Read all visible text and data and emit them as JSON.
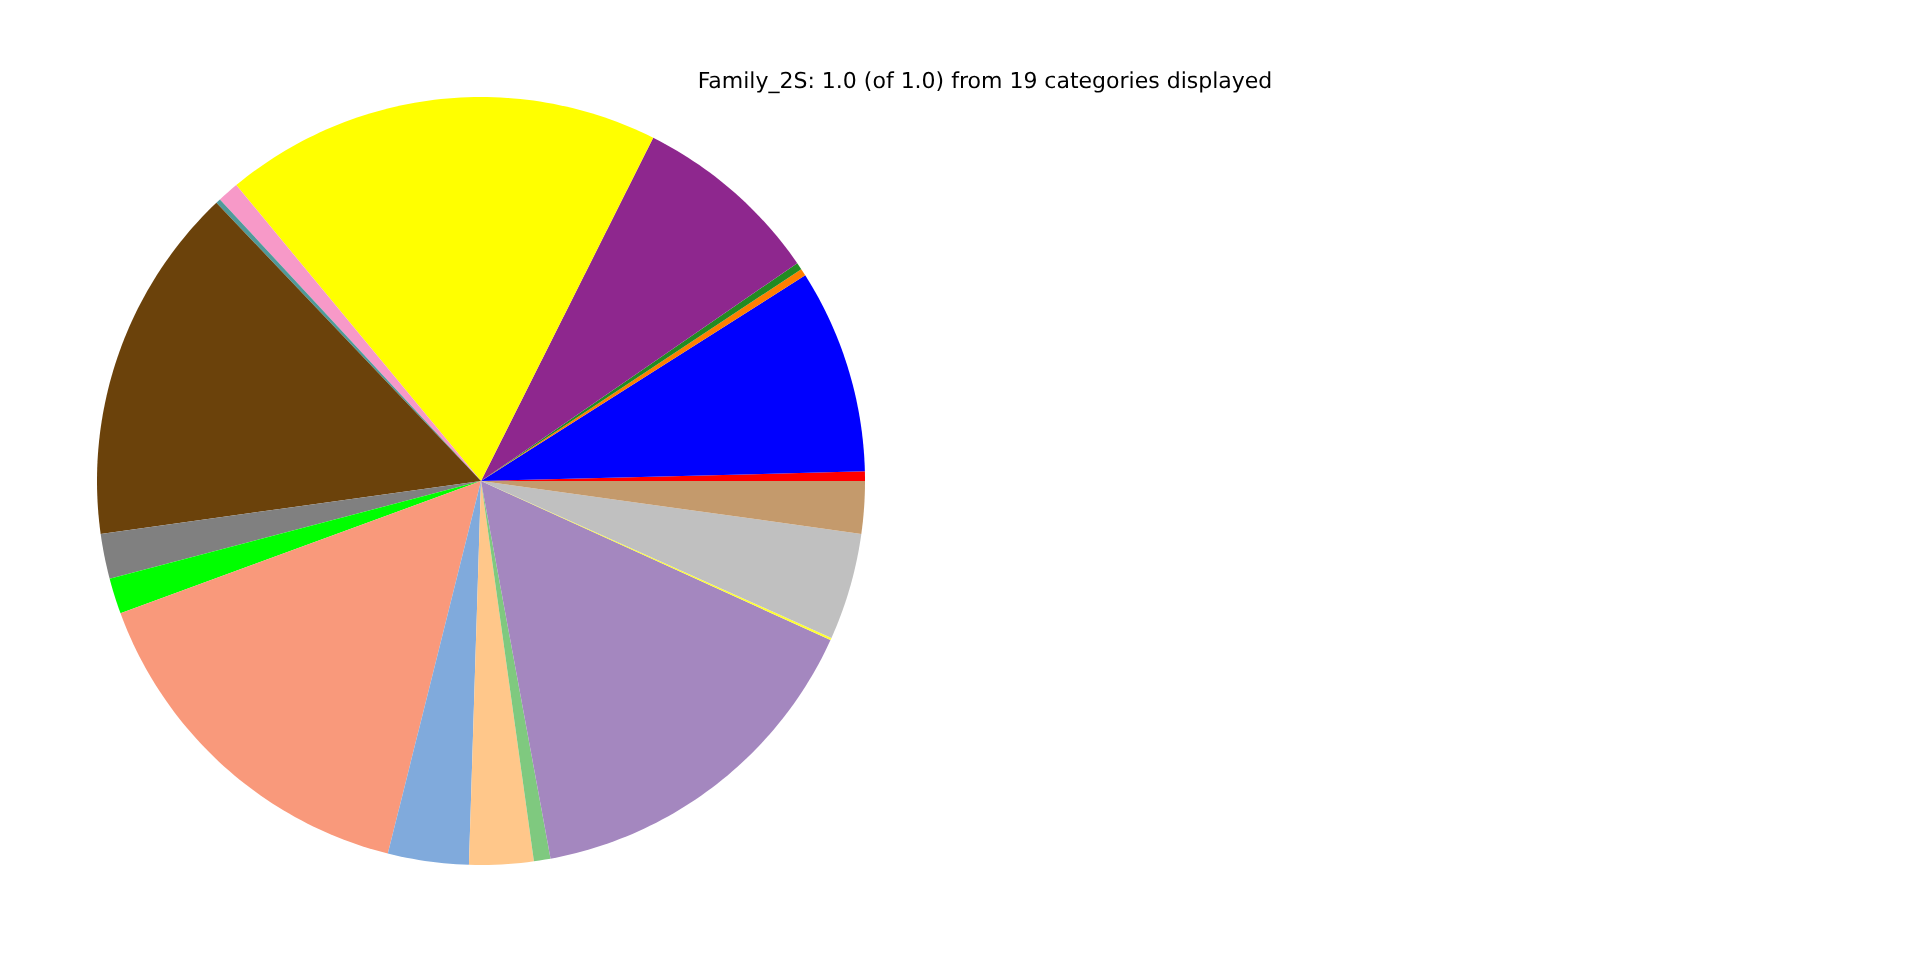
{
  "chart_data": {
    "type": "pie",
    "title": "Family_2S: 1.0 (of 1.0) from 19 categories displayed",
    "categories": [
      null,
      null,
      null,
      null,
      null,
      null,
      null,
      null,
      null,
      null,
      null,
      null,
      null,
      null,
      null,
      null,
      null,
      null,
      null
    ],
    "values": [
      0.4,
      8.6,
      0.3,
      0.3,
      8.0,
      18.4,
      0.9,
      0.2,
      15.1,
      1.9,
      1.5,
      15.5,
      3.4,
      2.7,
      0.7,
      15.3,
      0.1,
      4.5,
      2.2
    ],
    "colors": [
      "#ff0000",
      "#0000ff",
      "#ff7f00",
      "#228b22",
      "#8e278e",
      "#ffff00",
      "#f799c8",
      "#4f9a9a",
      "#6b420b",
      "#808080",
      "#00ff00",
      "#f9997b",
      "#80aadc",
      "#ffc78a",
      "#7fc97f",
      "#a487bf",
      "#ffff33",
      "#c0c0c0",
      "#c49a6c"
    ]
  }
}
